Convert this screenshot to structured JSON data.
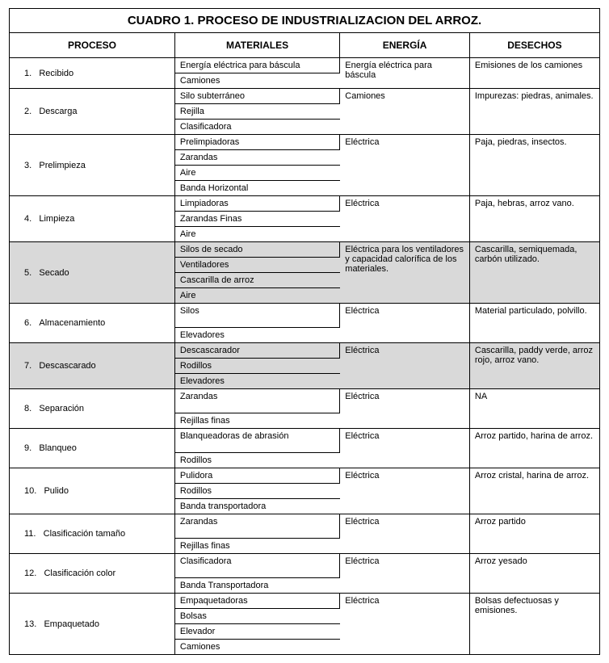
{
  "title": "CUADRO 1. PROCESO DE INDUSTRIALIZACION DEL ARROZ.",
  "headers": {
    "proceso": "PROCESO",
    "materiales": "MATERIALES",
    "energia": "ENERGÍA",
    "desechos": "DESECHOS"
  },
  "rows": [
    {
      "num": "1.",
      "proceso": "Recibido",
      "materiales": [
        "Energía eléctrica para báscula",
        "Camiones"
      ],
      "energia": "Energía eléctrica para báscula",
      "desechos": "Emisiones de los camiones",
      "shade": false
    },
    {
      "num": "2.",
      "proceso": "Descarga",
      "materiales": [
        "Silo subterráneo",
        "Rejilla",
        "Clasificadora"
      ],
      "energia": "Camiones",
      "desechos": "Impurezas: piedras, animales.",
      "shade": false
    },
    {
      "num": "3.",
      "proceso": "Prelimpieza",
      "materiales": [
        "Prelimpiadoras",
        "Zarandas",
        "Aire",
        "Banda Horizontal"
      ],
      "energia": "Eléctrica",
      "desechos": "Paja, piedras, insectos.",
      "shade": false
    },
    {
      "num": "4.",
      "proceso": "Limpieza",
      "materiales": [
        "Limpiadoras",
        "Zarandas Finas",
        " Aire"
      ],
      "energia": "Eléctrica",
      "desechos": "Paja, hebras, arroz vano.",
      "shade": false
    },
    {
      "num": "5.",
      "proceso": "Secado",
      "materiales": [
        "Silos de secado",
        "Ventiladores",
        "Cascarilla de arroz",
        "Aire"
      ],
      "energia": "Eléctrica para los ventiladores y capacidad calorífica de los materiales.",
      "desechos": "Cascarilla, semiquemada, carbón utilizado.",
      "shade": true
    },
    {
      "num": "6.",
      "proceso": "Almacenamiento",
      "materiales": [
        "Silos",
        "Elevadores"
      ],
      "energia": "Eléctrica",
      "desechos": "Material particulado, polvillo.",
      "shade": false
    },
    {
      "num": "7.",
      "proceso": "Descascarado",
      "materiales": [
        "Descascarador",
        "Rodillos",
        "Elevadores"
      ],
      "energia": "Eléctrica",
      "desechos": "Cascarilla, paddy verde, arroz rojo, arroz vano.",
      "shade": true
    },
    {
      "num": "8.",
      "proceso": "Separación",
      "materiales": [
        "Zarandas",
        "Rejillas finas"
      ],
      "energia": "Eléctrica",
      "desechos": "NA",
      "shade": false
    },
    {
      "num": "9.",
      "proceso": "Blanqueo",
      "materiales": [
        "Blanqueadoras de abrasión",
        "Rodillos"
      ],
      "energia": "Eléctrica",
      "desechos": "Arroz partido, harina de arroz.",
      "shade": false
    },
    {
      "num": "10.",
      "proceso": "Pulido",
      "materiales": [
        "Pulidora",
        "Rodillos",
        "Banda transportadora"
      ],
      "energia": "Eléctrica",
      "desechos": "Arroz cristal, harina de arroz.",
      "shade": false
    },
    {
      "num": "11.",
      "proceso": "Clasificación tamaño",
      "materiales": [
        "Zarandas",
        "Rejillas finas"
      ],
      "energia": "Eléctrica",
      "desechos": "Arroz partido",
      "shade": false
    },
    {
      "num": "12.",
      "proceso": "Clasificación color",
      "materiales": [
        "Clasificadora",
        "Banda Transportadora"
      ],
      "energia": "Eléctrica",
      "desechos": "Arroz  yesado",
      "shade": false
    },
    {
      "num": "13.",
      "proceso": "Empaquetado",
      "materiales": [
        "Empaquetadoras",
        "Bolsas",
        "Elevador",
        "Camiones"
      ],
      "energia": "Eléctrica",
      "desechos": "Bolsas defectuosas y emisiones.",
      "shade": false
    }
  ],
  "style": {
    "background_color": "#ffffff",
    "shade_color": "#d9d9d9",
    "border_color": "#000000",
    "font_family": "Arial",
    "title_fontsize": 15,
    "header_fontsize": 12,
    "cell_fontsize": 11
  }
}
